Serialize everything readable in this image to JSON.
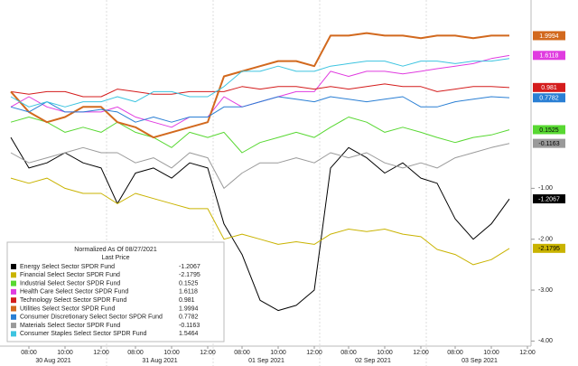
{
  "chart_data": {
    "type": "line",
    "categories": [
      null,
      "08:00",
      null,
      "10:00",
      null,
      "12:00",
      null,
      "08:00",
      null,
      "10:00",
      null,
      "12:00",
      null,
      "08:00",
      null,
      "10:00",
      null,
      "12:00",
      null,
      "08:00",
      null,
      "10:00",
      null,
      "12:00",
      null,
      "08:00",
      null,
      "10:00",
      null,
      "12:00"
    ],
    "day_labels": [
      "30 Aug 2021",
      "31 Aug 2021",
      "01 Sep 2021",
      "02 Sep 2021",
      "03 Sep 2021"
    ],
    "ylim": [
      -4.1,
      2.7
    ],
    "yticks": [
      {
        "value": -1,
        "label": "-1.00"
      },
      {
        "value": -2,
        "label": "-2.00"
      },
      {
        "value": -3,
        "label": "-3.00"
      },
      {
        "value": -4,
        "label": "-4.00"
      }
    ],
    "legend": {
      "title": "Normalized As Of 08/27/2021",
      "subtitle": "Last Price"
    },
    "series": [
      {
        "name": "Energy Select Sector SPDR Fund",
        "color": "#000000",
        "last": -1.2067,
        "end_label": true,
        "values": [
          0,
          -0.6,
          -0.5,
          -0.3,
          -0.5,
          -0.6,
          -1.3,
          -0.7,
          -0.6,
          -0.8,
          -0.5,
          -0.6,
          -1.7,
          -2.3,
          -3.2,
          -3.4,
          -3.3,
          -3.0,
          -0.6,
          -0.2,
          -0.4,
          -0.7,
          -0.5,
          -0.8,
          -0.9,
          -1.6,
          -2.0,
          -1.7,
          -1.21,
          null
        ]
      },
      {
        "name": "Financial Select Sector SPDR Fund",
        "color": "#c9b300",
        "last": -2.1795,
        "end_label": true,
        "values": [
          -0.8,
          -0.9,
          -0.8,
          -1.0,
          -1.1,
          -1.1,
          -1.3,
          -1.1,
          -1.2,
          -1.3,
          -1.4,
          -1.4,
          -2.0,
          -1.9,
          -2.0,
          -2.1,
          -2.05,
          -2.1,
          -1.9,
          -1.8,
          -1.85,
          -1.8,
          -1.9,
          -1.95,
          -2.2,
          -2.3,
          -2.5,
          -2.4,
          -2.18,
          null
        ]
      },
      {
        "name": "Industrial Select Sector SPDR Fund",
        "color": "#58d832",
        "last": 0.1525,
        "end_label": true,
        "values": [
          0.3,
          0.4,
          0.3,
          0.1,
          0.2,
          0.1,
          0.3,
          0.1,
          0.0,
          -0.2,
          0.1,
          0.0,
          0.1,
          -0.3,
          -0.1,
          0.0,
          0.1,
          0.0,
          0.2,
          0.4,
          0.3,
          0.1,
          0.2,
          0.1,
          0.0,
          -0.1,
          0.0,
          0.05,
          0.15,
          null
        ]
      },
      {
        "name": "Health Care Select Sector SPDR Fund",
        "color": "#e03ce0",
        "last": 1.6118,
        "end_label": true,
        "values": [
          0.6,
          0.8,
          0.6,
          0.5,
          0.5,
          0.5,
          0.6,
          0.4,
          0.3,
          0.2,
          0.4,
          0.4,
          0.8,
          0.6,
          0.7,
          0.8,
          0.9,
          0.9,
          1.3,
          1.2,
          1.3,
          1.3,
          1.25,
          1.3,
          1.35,
          1.4,
          1.45,
          1.55,
          1.61,
          null
        ]
      },
      {
        "name": "Technology Select Sector SPDR Fund",
        "color": "#d41c1c",
        "last": 0.981,
        "end_label": true,
        "values": [
          0.9,
          0.85,
          0.9,
          0.9,
          0.8,
          0.8,
          0.95,
          0.9,
          0.85,
          0.85,
          0.9,
          0.9,
          0.9,
          1.0,
          0.95,
          1.0,
          1.0,
          0.95,
          1.0,
          0.95,
          1.0,
          1.05,
          1.0,
          1.0,
          0.9,
          0.95,
          1.0,
          1.0,
          0.98,
          null
        ]
      },
      {
        "name": "Utilities Select Sector SPDR Fund",
        "color": "#d2691e",
        "last": 1.9994,
        "end_label": true,
        "values": [
          0.9,
          0.5,
          0.3,
          0.4,
          0.6,
          0.6,
          0.3,
          0.2,
          0.0,
          0.1,
          0.2,
          0.3,
          1.2,
          1.3,
          1.4,
          1.5,
          1.5,
          1.4,
          2.0,
          2.0,
          2.05,
          2.0,
          2.0,
          1.95,
          2.0,
          2.0,
          1.95,
          2.0,
          2.0,
          null
        ]
      },
      {
        "name": "Consumer Discretionary Select Sector SPDR Fund",
        "color": "#2a7fd4",
        "last": 0.7782,
        "end_label": true,
        "values": [
          0.6,
          0.5,
          0.7,
          0.5,
          0.5,
          0.55,
          0.5,
          0.3,
          0.4,
          0.3,
          0.4,
          0.4,
          0.6,
          0.6,
          0.7,
          0.8,
          0.75,
          0.7,
          0.8,
          0.75,
          0.7,
          0.75,
          0.8,
          0.6,
          0.6,
          0.7,
          0.75,
          0.8,
          0.78,
          null
        ]
      },
      {
        "name": "Materials Select Sector SPDR Fund",
        "color": "#9a9a9a",
        "last": -0.1163,
        "end_label": true,
        "values": [
          -0.3,
          -0.5,
          -0.4,
          -0.3,
          -0.2,
          -0.3,
          -0.3,
          -0.5,
          -0.4,
          -0.6,
          -0.3,
          -0.4,
          -1.0,
          -0.7,
          -0.5,
          -0.5,
          -0.4,
          -0.5,
          -0.3,
          -0.4,
          -0.3,
          -0.5,
          -0.6,
          -0.5,
          -0.6,
          -0.4,
          -0.3,
          -0.2,
          -0.12,
          null
        ]
      },
      {
        "name": "Consumer Staples Select Sector SPDR Fund",
        "color": "#3cc4e0",
        "last": 1.5464,
        "end_label": false,
        "values": [
          0.8,
          0.6,
          0.7,
          0.6,
          0.7,
          0.7,
          0.8,
          0.7,
          0.9,
          0.9,
          0.8,
          0.8,
          1.0,
          1.3,
          1.3,
          1.4,
          1.3,
          1.3,
          1.4,
          1.45,
          1.5,
          1.5,
          1.4,
          1.5,
          1.5,
          1.45,
          1.5,
          1.5,
          1.55,
          null
        ]
      }
    ]
  }
}
